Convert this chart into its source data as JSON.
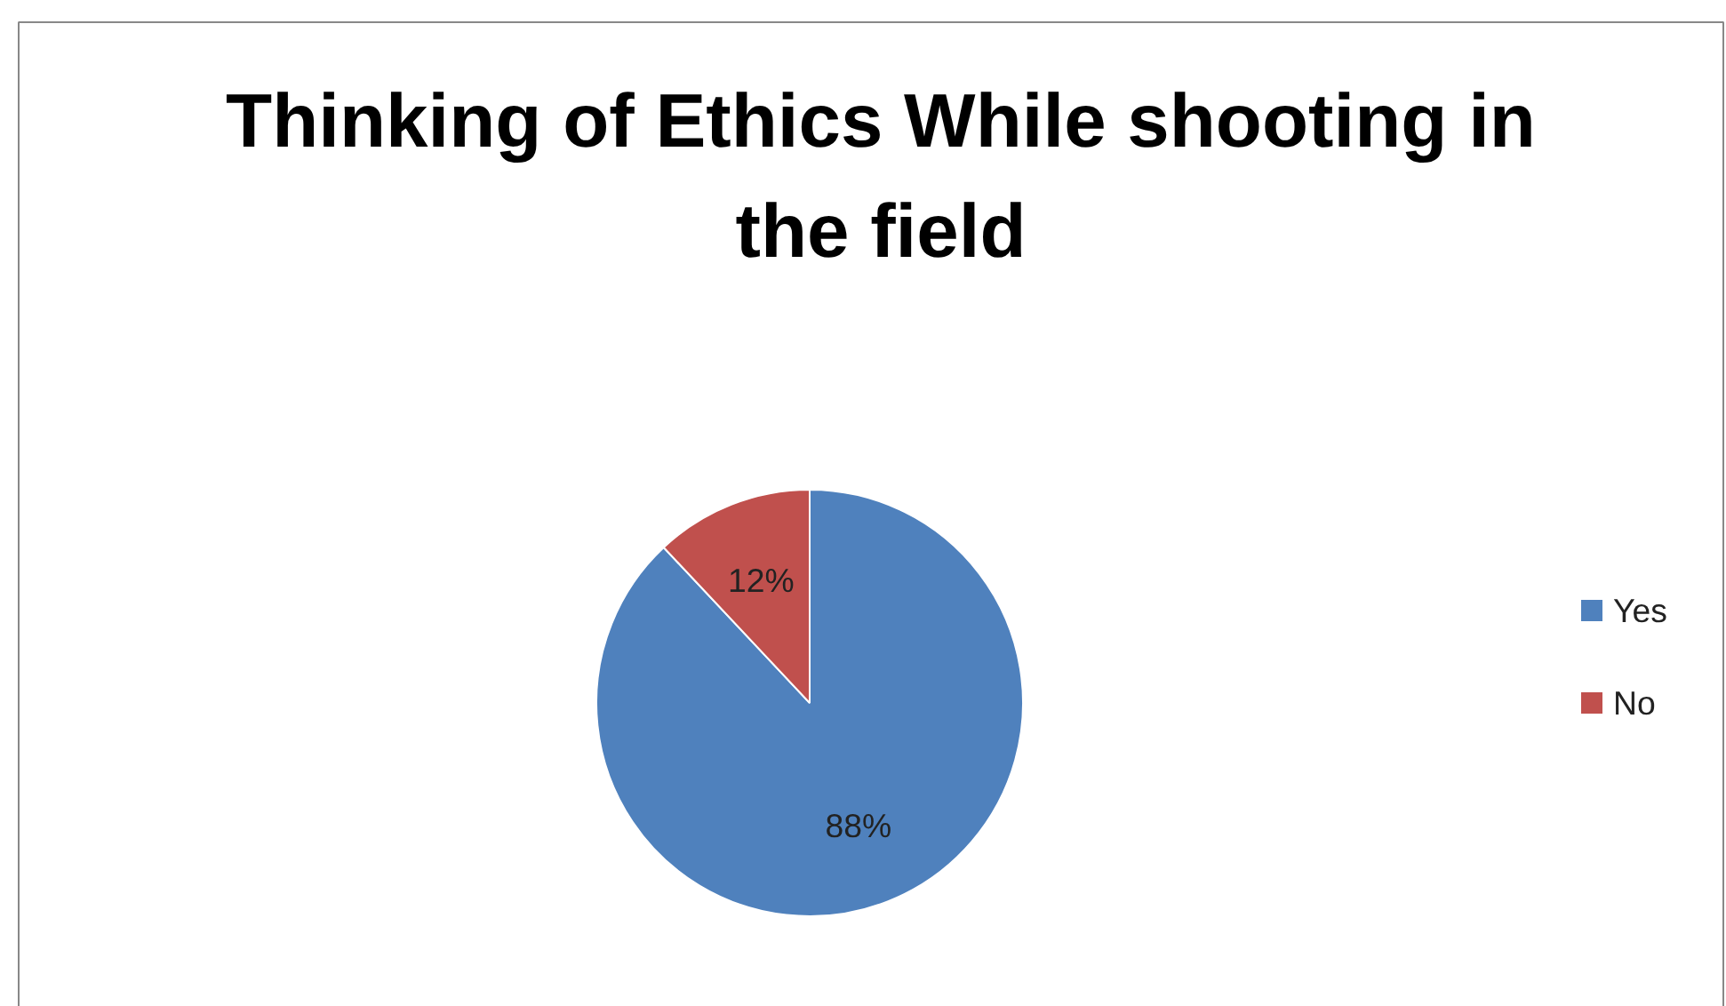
{
  "chart_data": {
    "type": "pie",
    "title": "Thinking of Ethics While shooting in the field",
    "categories": [
      "Yes",
      "No"
    ],
    "values": [
      88,
      12
    ],
    "colors": [
      "#4f81bd",
      "#c0504d"
    ],
    "value_labels": [
      "88%",
      "12%"
    ],
    "legend": "right"
  }
}
